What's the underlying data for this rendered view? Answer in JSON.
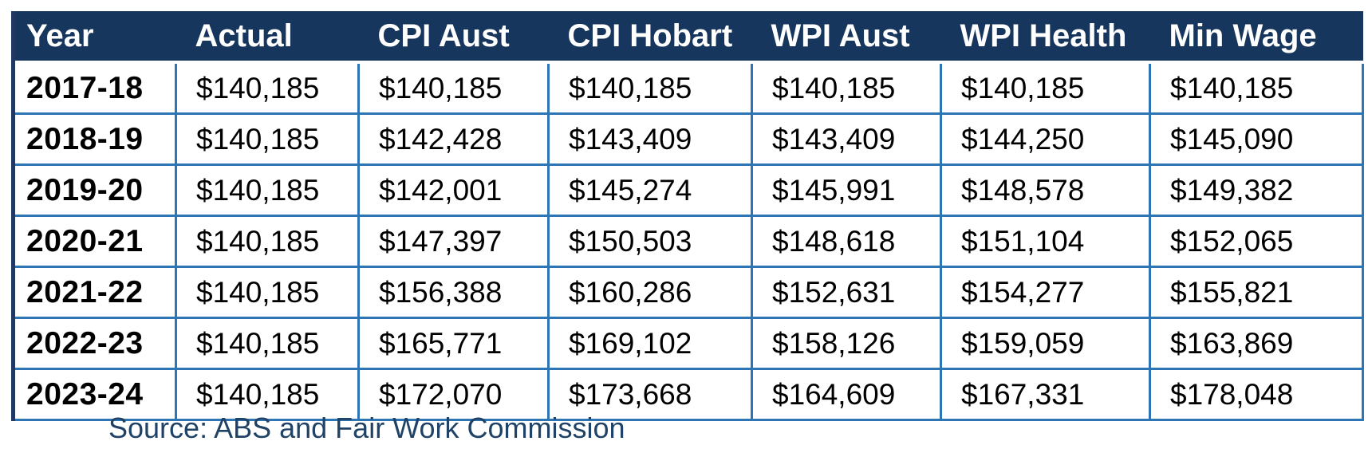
{
  "chart_data": {
    "type": "table",
    "title": "",
    "columns": [
      "Year",
      "Actual",
      "CPI Aust",
      "CPI Hobart",
      "WPI Aust",
      "WPI Health",
      "Min Wage"
    ],
    "rows": [
      {
        "cells": [
          "2017-18",
          "$140,185",
          "$140,185",
          "$140,185",
          "$140,185",
          "$140,185",
          "$140,185"
        ]
      },
      {
        "cells": [
          "2018-19",
          "$140,185",
          "$142,428",
          "$143,409",
          "$143,409",
          "$144,250",
          "$145,090"
        ]
      },
      {
        "cells": [
          "2019-20",
          "$140,185",
          "$142,001",
          "$145,274",
          "$145,991",
          "$148,578",
          "$149,382"
        ]
      },
      {
        "cells": [
          "2020-21",
          "$140,185",
          "$147,397",
          "$150,503",
          "$148,618",
          "$151,104",
          "$152,065"
        ]
      },
      {
        "cells": [
          "2021-22",
          "$140,185",
          "$156,388",
          "$160,286",
          "$152,631",
          "$154,277",
          "$155,821"
        ]
      },
      {
        "cells": [
          "2022-23",
          "$140,185",
          "$165,771",
          "$169,102",
          "$158,126",
          "$159,059",
          "$163,869"
        ]
      },
      {
        "cells": [
          "2023-24",
          "$140,185",
          "$172,070",
          "$173,668",
          "$164,609",
          "$167,331",
          "$178,048"
        ]
      }
    ],
    "source_note": "Source: ABS and Fair Work Commission"
  },
  "colors": {
    "header_background": "#17365D",
    "header_text": "#FFFFFF",
    "grid_line": "#2E75B6",
    "outer_left_border": "#1F3864",
    "body_text": "#000000",
    "source_text": "#1F4266"
  }
}
